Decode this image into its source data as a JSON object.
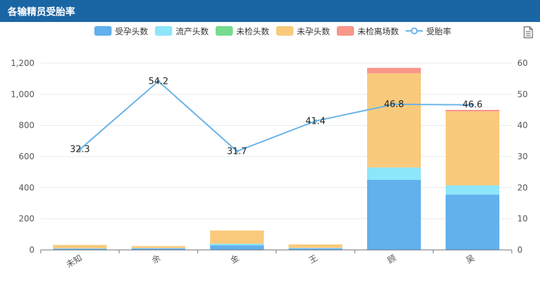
{
  "header": {
    "title": "各输精员受胎率"
  },
  "toolbar": {
    "save_icon": "document-icon"
  },
  "chart_data": {
    "type": "bar",
    "categories": [
      "未知",
      "余",
      "金",
      "王",
      "顾",
      "吴"
    ],
    "series": [
      {
        "name": "受孕头数",
        "type": "bar",
        "color": "#62b0ec",
        "values": [
          8,
          10,
          30,
          10,
          450,
          355
        ]
      },
      {
        "name": "流产头数",
        "type": "bar",
        "color": "#8ee6fa",
        "values": [
          2,
          2,
          10,
          3,
          80,
          60
        ]
      },
      {
        "name": "未检头数",
        "type": "bar",
        "color": "#76db8e",
        "values": [
          0,
          0,
          0,
          0,
          0,
          0
        ]
      },
      {
        "name": "未孕头数",
        "type": "bar",
        "color": "#f9ca7c",
        "values": [
          22,
          13,
          85,
          22,
          605,
          475
        ]
      },
      {
        "name": "未检离场数",
        "type": "bar",
        "color": "#f8968a",
        "values": [
          0,
          0,
          0,
          0,
          35,
          10
        ]
      },
      {
        "name": "受胎率",
        "type": "line",
        "color": "#6ab3e6",
        "values": [
          32.3,
          54.2,
          31.7,
          41.4,
          46.8,
          46.6
        ]
      }
    ],
    "y_left": {
      "ylim": [
        0,
        1200
      ],
      "ticks": [
        "0",
        "200",
        "400",
        "600",
        "800",
        "1,000",
        "1,200"
      ]
    },
    "y_right": {
      "ylim": [
        0,
        60
      ],
      "ticks": [
        "0",
        "10",
        "20",
        "30",
        "40",
        "50",
        "60"
      ]
    },
    "data_labels": [
      "32.3",
      "54.2",
      "31.7",
      "41.4",
      "46.8",
      "46.6"
    ],
    "grid": true,
    "legend_position": "top-center"
  }
}
